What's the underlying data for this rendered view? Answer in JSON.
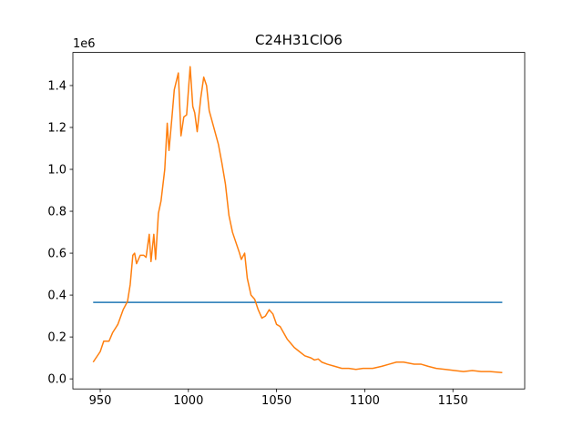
{
  "chart_data": {
    "type": "line",
    "title": "C24H31ClO6",
    "y_offset_label": "1e6",
    "xlim": [
      934.5,
      1190.7
    ],
    "ylim": [
      -48000,
      1558000
    ],
    "xticks": [
      950,
      1000,
      1050,
      1100,
      1150
    ],
    "yticks": [
      {
        "value": 0,
        "label": "0.0"
      },
      {
        "value": 200000,
        "label": "0.2"
      },
      {
        "value": 400000,
        "label": "0.4"
      },
      {
        "value": 600000,
        "label": "0.6"
      },
      {
        "value": 800000,
        "label": "0.8"
      },
      {
        "value": 1000000,
        "label": "1.0"
      },
      {
        "value": 1200000,
        "label": "1.2"
      },
      {
        "value": 1400000,
        "label": "1.4"
      }
    ],
    "series": [
      {
        "color": "#1f77b4",
        "x": [
          946,
          1178
        ],
        "values": [
          365000,
          365000
        ]
      },
      {
        "color": "#ff7f0e",
        "x": [
          946,
          950,
          952,
          955,
          957,
          960,
          963,
          965.5,
          967,
          968.5,
          969.5,
          970.6,
          972.7,
          974.7,
          976,
          977.8,
          978.8,
          980.4,
          981.4,
          983,
          984.5,
          986.6,
          988,
          989,
          990.7,
          992,
          994.3,
          995.8,
          997.4,
          999,
          1001,
          1002.5,
          1003.6,
          1005,
          1007,
          1008.7,
          1010.3,
          1011.8,
          1014.4,
          1017,
          1019,
          1021,
          1023,
          1025,
          1027,
          1029,
          1030,
          1031.9,
          1033.4,
          1035.5,
          1037.6,
          1039.6,
          1041.7,
          1043.7,
          1045.8,
          1047.9,
          1050,
          1052,
          1054,
          1056,
          1058,
          1060,
          1063,
          1066,
          1069.5,
          1071.5,
          1073.6,
          1075.6,
          1078.8,
          1083,
          1087,
          1091,
          1095,
          1099,
          1104.5,
          1109.6,
          1113.8,
          1118,
          1122,
          1125,
          1128,
          1132,
          1136,
          1140.5,
          1145.7,
          1151,
          1156,
          1161,
          1166,
          1171,
          1178
        ],
        "values": [
          80000,
          130000,
          180000,
          180000,
          220000,
          260000,
          330000,
          370000,
          450000,
          590000,
          600000,
          550000,
          590000,
          590000,
          580000,
          690000,
          560000,
          690000,
          570000,
          790000,
          850000,
          1000000,
          1220000,
          1090000,
          1250000,
          1380000,
          1460000,
          1160000,
          1250000,
          1260000,
          1490000,
          1300000,
          1270000,
          1180000,
          1340000,
          1440000,
          1400000,
          1280000,
          1200000,
          1120000,
          1030000,
          930000,
          780000,
          700000,
          650000,
          600000,
          570000,
          600000,
          480000,
          400000,
          380000,
          330000,
          290000,
          300000,
          330000,
          310000,
          260000,
          250000,
          220000,
          190000,
          170000,
          150000,
          130000,
          110000,
          100000,
          90000,
          95000,
          80000,
          70000,
          60000,
          50000,
          50000,
          45000,
          50000,
          50000,
          60000,
          70000,
          80000,
          80000,
          75000,
          70000,
          70000,
          60000,
          50000,
          45000,
          40000,
          35000,
          40000,
          35000,
          35000,
          30000
        ]
      }
    ]
  }
}
